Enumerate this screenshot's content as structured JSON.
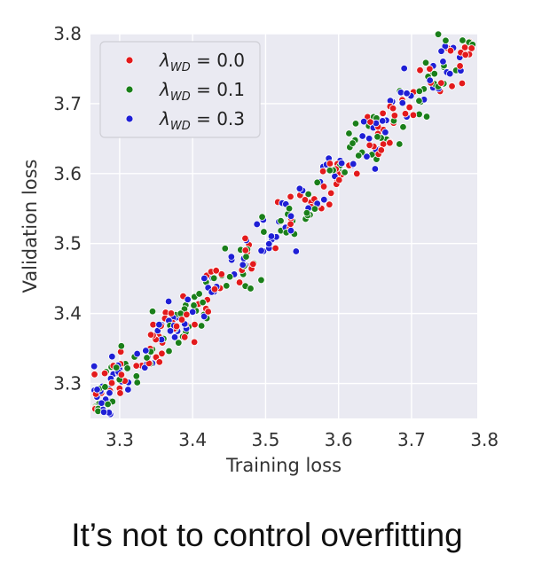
{
  "caption": "It’s not to control overfitting",
  "chart_data": {
    "type": "scatter",
    "xlabel": "Training loss",
    "ylabel": "Validation loss",
    "xlim": [
      3.26,
      3.79
    ],
    "ylim": [
      3.25,
      3.8
    ],
    "x_ticks": [
      "3.3",
      "3.4",
      "3.5",
      "3.6",
      "3.7",
      "3.8"
    ],
    "y_ticks": [
      "3.3",
      "3.4",
      "3.5",
      "3.6",
      "3.7",
      "3.8"
    ],
    "grid": true,
    "background": "#eaeaf2",
    "legend_position": "top-left",
    "series": [
      {
        "symbol": "λ",
        "sub": "WD",
        "suffix": " = 0.0",
        "color": "#e31a1c"
      },
      {
        "symbol": "λ",
        "sub": "WD",
        "suffix": " = 0.1",
        "color": "#1a7f1a"
      },
      {
        "symbol": "λ",
        "sub": "WD",
        "suffix": " = 0.3",
        "color": "#1f1fd6"
      }
    ],
    "point_count_per_series": 130,
    "trend": {
      "slope": 1.0,
      "intercept": 0.005,
      "noise": 0.02
    }
  }
}
